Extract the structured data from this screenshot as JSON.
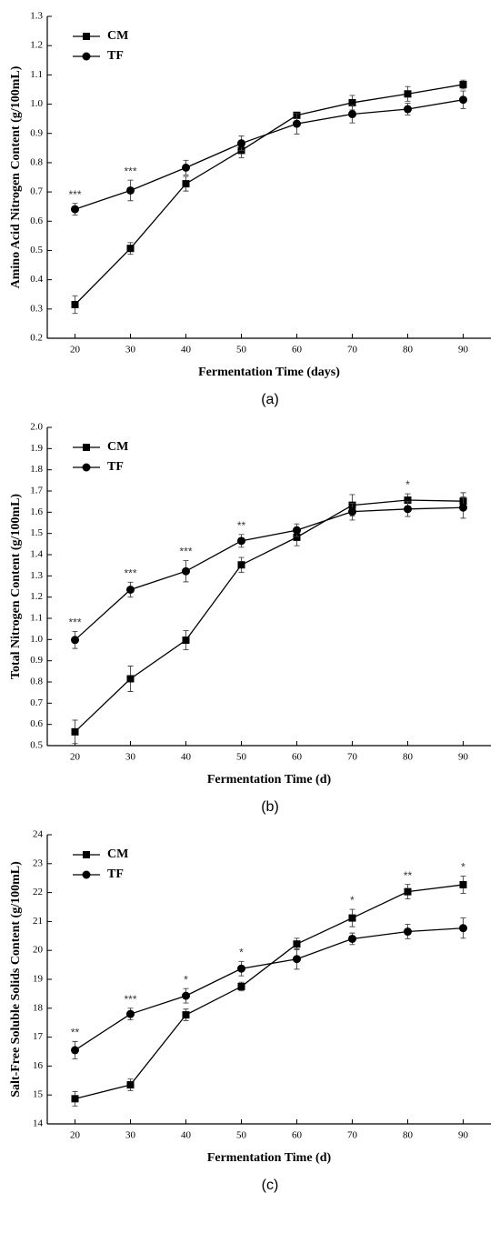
{
  "chart_data": [
    {
      "type": "line",
      "caption": "(a)",
      "xlabel": "Fermentation Time (days)",
      "ylabel": "Amino Acid Nitrogen Content (g/100mL)",
      "x": [
        20,
        30,
        40,
        50,
        60,
        70,
        80,
        90
      ],
      "xlim": [
        15,
        95
      ],
      "xticks": [
        20,
        30,
        40,
        50,
        60,
        70,
        80,
        90
      ],
      "ylim": [
        0.2,
        1.3
      ],
      "yticks": [
        0.2,
        0.3,
        0.4,
        0.5,
        0.6,
        0.7,
        0.8,
        0.9,
        {
          "value": 1,
          "label": "1.0"
        },
        1.1,
        1.2,
        1.3
      ],
      "legend": "upper left",
      "series": [
        {
          "name": "CM",
          "color": "#000000",
          "marker": "square",
          "values": [
            0.315,
            0.507,
            0.728,
            0.842,
            0.962,
            1.005,
            1.035,
            1.067
          ],
          "errors": [
            0.03,
            0.02,
            0.025,
            0.025,
            0.01,
            0.025,
            0.025,
            0.015
          ]
        },
        {
          "name": "TF",
          "color": "#000000",
          "marker": "circle",
          "values": [
            0.641,
            0.705,
            0.783,
            0.866,
            0.933,
            0.966,
            0.983,
            1.015
          ],
          "errors": [
            0.02,
            0.035,
            0.025,
            0.025,
            0.035,
            0.03,
            0.02,
            0.03
          ]
        }
      ],
      "annotations": [
        {
          "x": 20,
          "text": "***"
        },
        {
          "x": 30,
          "text": "***"
        }
      ]
    },
    {
      "type": "line",
      "caption": "(b)",
      "xlabel": "Fermentation Time (d)",
      "ylabel": "Total Nitrogen Content (g/100mL)",
      "x": [
        20,
        30,
        40,
        50,
        60,
        70,
        80,
        90
      ],
      "xlim": [
        15,
        95
      ],
      "xticks": [
        20,
        30,
        40,
        50,
        60,
        70,
        80,
        90
      ],
      "ylim": [
        0.5,
        2.0
      ],
      "yticks": [
        0.5,
        0.6,
        0.7,
        0.8,
        0.9,
        {
          "value": 1,
          "label": "1.0"
        },
        1.1,
        1.2,
        1.3,
        1.4,
        1.5,
        1.6,
        1.7,
        1.8,
        1.9,
        {
          "value": 2,
          "label": "2.0"
        }
      ],
      "legend": "upper left",
      "series": [
        {
          "name": "CM",
          "color": "#000000",
          "marker": "square",
          "values": [
            0.565,
            0.815,
            0.997,
            1.352,
            1.482,
            1.633,
            1.657,
            1.652
          ],
          "errors": [
            0.055,
            0.06,
            0.045,
            0.035,
            0.04,
            0.05,
            0.03,
            0.04
          ]
        },
        {
          "name": "TF",
          "color": "#000000",
          "marker": "circle",
          "values": [
            0.998,
            1.235,
            1.322,
            1.465,
            1.515,
            1.603,
            1.615,
            1.622
          ],
          "errors": [
            0.04,
            0.035,
            0.05,
            0.03,
            0.03,
            0.04,
            0.035,
            0.05
          ]
        }
      ],
      "annotations": [
        {
          "x": 20,
          "text": "***"
        },
        {
          "x": 30,
          "text": "***"
        },
        {
          "x": 40,
          "text": "***"
        },
        {
          "x": 50,
          "text": "**"
        },
        {
          "x": 80,
          "text": "*"
        }
      ]
    },
    {
      "type": "line",
      "caption": "(c)",
      "xlabel": "Fermentation Time (d)",
      "ylabel": "Salt-Free Soluble Solids Content (g/100mL)",
      "x": [
        20,
        30,
        40,
        50,
        60,
        70,
        80,
        90
      ],
      "xlim": [
        15,
        95
      ],
      "xticks": [
        20,
        30,
        40,
        50,
        60,
        70,
        80,
        90
      ],
      "ylim": [
        14,
        24
      ],
      "yticks": [
        14,
        15,
        16,
        17,
        18,
        19,
        20,
        21,
        22,
        23,
        24
      ],
      "legend": "upper left",
      "series": [
        {
          "name": "CM",
          "color": "#000000",
          "marker": "square",
          "values": [
            14.87,
            15.35,
            17.77,
            18.75,
            20.22,
            21.12,
            22.03,
            22.27
          ],
          "errors": [
            0.25,
            0.2,
            0.2,
            0.15,
            0.2,
            0.3,
            0.25,
            0.3
          ]
        },
        {
          "name": "TF",
          "color": "#000000",
          "marker": "circle",
          "values": [
            16.55,
            17.8,
            18.43,
            19.37,
            19.7,
            20.4,
            20.65,
            20.77
          ],
          "errors": [
            0.3,
            0.2,
            0.25,
            0.25,
            0.35,
            0.2,
            0.25,
            0.35
          ]
        }
      ],
      "annotations": [
        {
          "x": 20,
          "text": "**"
        },
        {
          "x": 30,
          "text": "***"
        },
        {
          "x": 40,
          "text": "*"
        },
        {
          "x": 50,
          "text": "*"
        },
        {
          "x": 70,
          "text": "*"
        },
        {
          "x": 80,
          "text": "**"
        },
        {
          "x": 90,
          "text": "*"
        }
      ]
    }
  ]
}
